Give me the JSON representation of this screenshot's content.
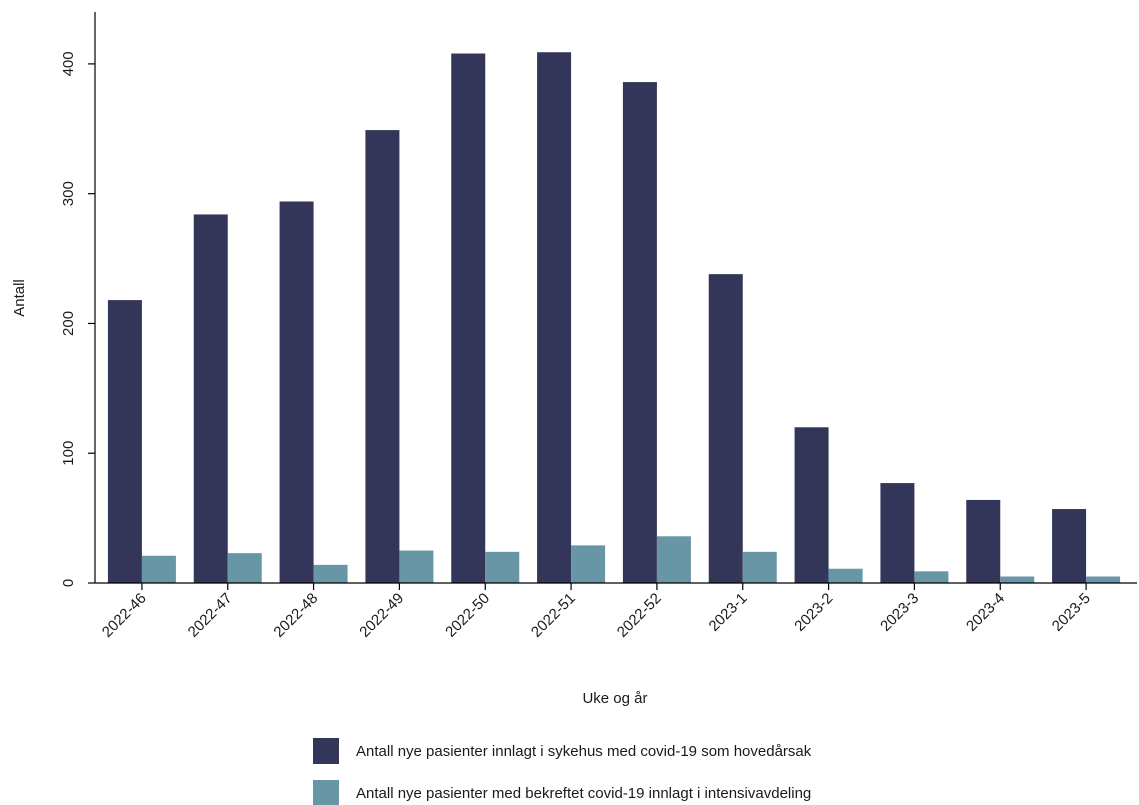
{
  "chart_data": {
    "type": "bar",
    "title": "",
    "xlabel": "Uke og år",
    "ylabel": "Antall",
    "ylim": [
      0,
      440
    ],
    "yticks": [
      0,
      100,
      200,
      300,
      400
    ],
    "grid": false,
    "legend_position": "bottom",
    "categories": [
      "2022-46",
      "2022-47",
      "2022-48",
      "2022-49",
      "2022-50",
      "2022-51",
      "2022-52",
      "2023-1",
      "2023-2",
      "2023-3",
      "2023-4",
      "2023-5"
    ],
    "series": [
      {
        "name": "Antall nye pasienter innlagt i sykehus med covid-19 som hovedårsak",
        "color": "#343659",
        "values": [
          218,
          284,
          294,
          349,
          408,
          409,
          386,
          238,
          120,
          77,
          64,
          57
        ]
      },
      {
        "name": "Antall nye pasienter med bekreftet covid-19 innlagt i intensivavdeling",
        "color": "#6996a6",
        "values": [
          21,
          23,
          14,
          25,
          24,
          29,
          36,
          24,
          11,
          9,
          5,
          5
        ]
      }
    ]
  }
}
